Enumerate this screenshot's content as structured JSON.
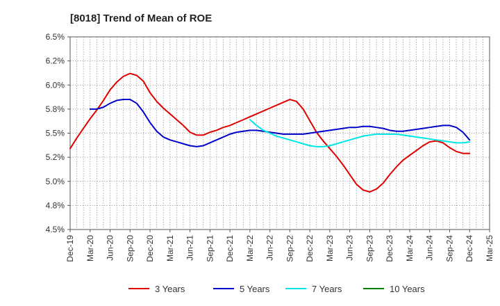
{
  "chart_data": {
    "type": "line",
    "title": "[8018]  Trend of Mean of ROE",
    "xlabel": "",
    "ylabel": "",
    "x_ticks": [
      "Dec-19",
      "Mar-20",
      "Jun-20",
      "Sep-20",
      "Dec-20",
      "Mar-21",
      "Jun-21",
      "Sep-21",
      "Dec-21",
      "Mar-22",
      "Jun-22",
      "Sep-22",
      "Dec-22",
      "Mar-23",
      "Jun-23",
      "Sep-23",
      "Dec-23",
      "Mar-24",
      "Jun-24",
      "Sep-24",
      "Dec-24",
      "Mar-25"
    ],
    "y_ticks": [
      "4.5%",
      "4.8%",
      "5.0%",
      "5.2%",
      "5.5%",
      "5.8%",
      "6.0%",
      "6.2%",
      "6.5%"
    ],
    "ylim": [
      4.5,
      6.5
    ],
    "grid": true,
    "legend_position": "bottom",
    "series": [
      {
        "name": "3 Years",
        "color": "#e00000",
        "points": [
          [
            "Dec-19",
            5.34
          ],
          [
            "Jan-20",
            5.45
          ],
          [
            "Feb-20",
            5.55
          ],
          [
            "Mar-20",
            5.65
          ],
          [
            "Apr-20",
            5.74
          ],
          [
            "May-20",
            5.84
          ],
          [
            "Jun-20",
            5.95
          ],
          [
            "Jul-20",
            6.03
          ],
          [
            "Aug-20",
            6.09
          ],
          [
            "Sep-20",
            6.12
          ],
          [
            "Oct-20",
            6.1
          ],
          [
            "Nov-20",
            6.04
          ],
          [
            "Dec-20",
            5.92
          ],
          [
            "Jan-21",
            5.83
          ],
          [
            "Feb-21",
            5.76
          ],
          [
            "Mar-21",
            5.7
          ],
          [
            "Apr-21",
            5.64
          ],
          [
            "May-21",
            5.58
          ],
          [
            "Jun-21",
            5.51
          ],
          [
            "Jul-21",
            5.48
          ],
          [
            "Aug-21",
            5.48
          ],
          [
            "Sep-21",
            5.51
          ],
          [
            "Oct-21",
            5.53
          ],
          [
            "Nov-21",
            5.56
          ],
          [
            "Dec-21",
            5.58
          ],
          [
            "Jan-22",
            5.61
          ],
          [
            "Feb-22",
            5.64
          ],
          [
            "Mar-22",
            5.67
          ],
          [
            "Apr-22",
            5.7
          ],
          [
            "May-22",
            5.73
          ],
          [
            "Jun-22",
            5.76
          ],
          [
            "Jul-22",
            5.79
          ],
          [
            "Aug-22",
            5.82
          ],
          [
            "Sep-22",
            5.85
          ],
          [
            "Oct-22",
            5.83
          ],
          [
            "Nov-22",
            5.75
          ],
          [
            "Dec-22",
            5.63
          ],
          [
            "Jan-23",
            5.51
          ],
          [
            "Feb-23",
            5.42
          ],
          [
            "Mar-23",
            5.34
          ],
          [
            "Apr-23",
            5.26
          ],
          [
            "May-23",
            5.17
          ],
          [
            "Jun-23",
            5.07
          ],
          [
            "Jul-23",
            4.97
          ],
          [
            "Aug-23",
            4.91
          ],
          [
            "Sep-23",
            4.89
          ],
          [
            "Oct-23",
            4.92
          ],
          [
            "Nov-23",
            4.98
          ],
          [
            "Dec-23",
            5.07
          ],
          [
            "Jan-24",
            5.15
          ],
          [
            "Feb-24",
            5.22
          ],
          [
            "Mar-24",
            5.27
          ],
          [
            "Apr-24",
            5.32
          ],
          [
            "May-24",
            5.37
          ],
          [
            "Jun-24",
            5.41
          ],
          [
            "Jul-24",
            5.42
          ],
          [
            "Aug-24",
            5.4
          ],
          [
            "Sep-24",
            5.35
          ],
          [
            "Oct-24",
            5.31
          ],
          [
            "Nov-24",
            5.29
          ],
          [
            "Dec-24",
            5.29
          ]
        ]
      },
      {
        "name": "5 Years",
        "color": "#0000cc",
        "points": [
          [
            "Mar-20",
            5.75
          ],
          [
            "Apr-20",
            5.75
          ],
          [
            "May-20",
            5.77
          ],
          [
            "Jun-20",
            5.81
          ],
          [
            "Jul-20",
            5.84
          ],
          [
            "Aug-20",
            5.85
          ],
          [
            "Sep-20",
            5.85
          ],
          [
            "Oct-20",
            5.81
          ],
          [
            "Nov-20",
            5.72
          ],
          [
            "Dec-20",
            5.61
          ],
          [
            "Jan-21",
            5.52
          ],
          [
            "Feb-21",
            5.46
          ],
          [
            "Mar-21",
            5.43
          ],
          [
            "Apr-21",
            5.41
          ],
          [
            "May-21",
            5.39
          ],
          [
            "Jun-21",
            5.37
          ],
          [
            "Jul-21",
            5.36
          ],
          [
            "Aug-21",
            5.37
          ],
          [
            "Sep-21",
            5.4
          ],
          [
            "Oct-21",
            5.43
          ],
          [
            "Nov-21",
            5.46
          ],
          [
            "Dec-21",
            5.49
          ],
          [
            "Jan-22",
            5.51
          ],
          [
            "Feb-22",
            5.52
          ],
          [
            "Mar-22",
            5.53
          ],
          [
            "Apr-22",
            5.53
          ],
          [
            "May-22",
            5.52
          ],
          [
            "Jun-22",
            5.51
          ],
          [
            "Jul-22",
            5.5
          ],
          [
            "Aug-22",
            5.49
          ],
          [
            "Sep-22",
            5.49
          ],
          [
            "Oct-22",
            5.49
          ],
          [
            "Nov-22",
            5.49
          ],
          [
            "Dec-22",
            5.5
          ],
          [
            "Jan-23",
            5.51
          ],
          [
            "Feb-23",
            5.52
          ],
          [
            "Mar-23",
            5.53
          ],
          [
            "Apr-23",
            5.54
          ],
          [
            "May-23",
            5.55
          ],
          [
            "Jun-23",
            5.56
          ],
          [
            "Jul-23",
            5.56
          ],
          [
            "Aug-23",
            5.57
          ],
          [
            "Sep-23",
            5.57
          ],
          [
            "Oct-23",
            5.56
          ],
          [
            "Nov-23",
            5.55
          ],
          [
            "Dec-23",
            5.53
          ],
          [
            "Jan-24",
            5.52
          ],
          [
            "Feb-24",
            5.52
          ],
          [
            "Mar-24",
            5.53
          ],
          [
            "Apr-24",
            5.54
          ],
          [
            "May-24",
            5.55
          ],
          [
            "Jun-24",
            5.56
          ],
          [
            "Jul-24",
            5.57
          ],
          [
            "Aug-24",
            5.58
          ],
          [
            "Sep-24",
            5.58
          ],
          [
            "Oct-24",
            5.56
          ],
          [
            "Nov-24",
            5.51
          ],
          [
            "Dec-24",
            5.43
          ]
        ]
      },
      {
        "name": "7 Years",
        "color": "#00e5e5",
        "points": [
          [
            "Mar-22",
            5.64
          ],
          [
            "Apr-22",
            5.58
          ],
          [
            "May-22",
            5.53
          ],
          [
            "Jun-22",
            5.5
          ],
          [
            "Jul-22",
            5.47
          ],
          [
            "Aug-22",
            5.45
          ],
          [
            "Sep-22",
            5.43
          ],
          [
            "Oct-22",
            5.41
          ],
          [
            "Nov-22",
            5.39
          ],
          [
            "Dec-22",
            5.37
          ],
          [
            "Jan-23",
            5.36
          ],
          [
            "Feb-23",
            5.36
          ],
          [
            "Mar-23",
            5.37
          ],
          [
            "Apr-23",
            5.39
          ],
          [
            "May-23",
            5.41
          ],
          [
            "Jun-23",
            5.43
          ],
          [
            "Jul-23",
            5.45
          ],
          [
            "Aug-23",
            5.47
          ],
          [
            "Sep-23",
            5.48
          ],
          [
            "Oct-23",
            5.49
          ],
          [
            "Nov-23",
            5.49
          ],
          [
            "Dec-23",
            5.49
          ],
          [
            "Jan-24",
            5.49
          ],
          [
            "Feb-24",
            5.48
          ],
          [
            "Mar-24",
            5.47
          ],
          [
            "Apr-24",
            5.46
          ],
          [
            "May-24",
            5.45
          ],
          [
            "Jun-24",
            5.44
          ],
          [
            "Jul-24",
            5.43
          ],
          [
            "Aug-24",
            5.42
          ],
          [
            "Sep-24",
            5.41
          ],
          [
            "Oct-24",
            5.4
          ],
          [
            "Nov-24",
            5.4
          ],
          [
            "Dec-24",
            5.41
          ]
        ]
      },
      {
        "name": "10 Years",
        "color": "#008000",
        "points": []
      }
    ]
  }
}
